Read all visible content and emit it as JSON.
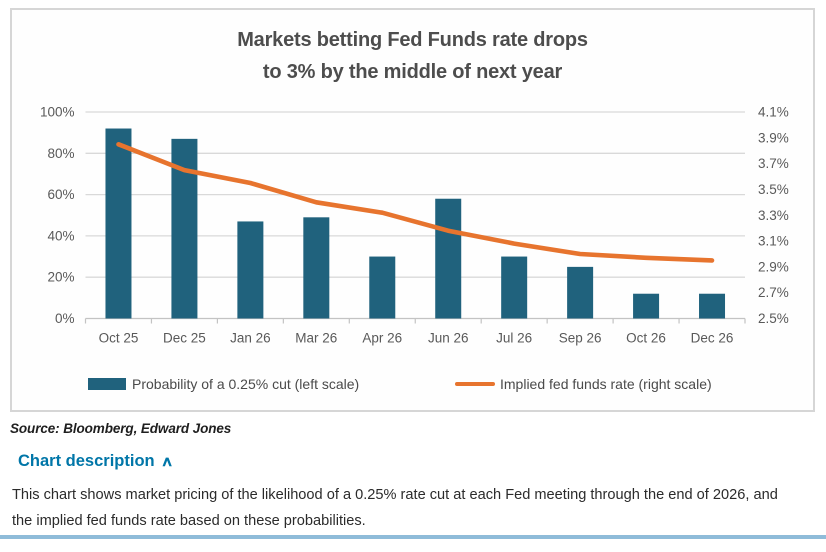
{
  "card": {
    "title_line1": "Markets betting Fed Funds rate drops",
    "title_line2": "to 3% by the middle of next year",
    "legend": [
      {
        "label": "Probability of a 0.25% cut (left scale)"
      },
      {
        "label": "Implied fed funds rate (right scale)"
      }
    ]
  },
  "chart_data": {
    "type": "bar+line",
    "title": "Markets betting Fed Funds rate drops to 3% by the middle of next year",
    "categories": [
      "Oct 25",
      "Dec 25",
      "Jan 26",
      "Mar 26",
      "Apr 26",
      "Jun 26",
      "Jul 26",
      "Sep 26",
      "Oct 26",
      "Dec 26"
    ],
    "series": [
      {
        "name": "Probability of a 0.25% cut (left scale)",
        "type": "bar",
        "axis": "left",
        "values": [
          92,
          87,
          47,
          49,
          30,
          58,
          30,
          25,
          12,
          12
        ]
      },
      {
        "name": "Implied fed funds rate (right scale)",
        "type": "line",
        "axis": "right",
        "values": [
          3.85,
          3.65,
          3.55,
          3.4,
          3.32,
          3.18,
          3.08,
          3.0,
          2.97,
          2.95
        ]
      }
    ],
    "left_axis": {
      "min": 0,
      "max": 100,
      "ticks": [
        "100%",
        "80%",
        "60%",
        "40%",
        "20%",
        "0%"
      ]
    },
    "right_axis": {
      "min": 2.5,
      "max": 4.1,
      "ticks": [
        "4.1%",
        "3.9%",
        "3.7%",
        "3.5%",
        "3.3%",
        "3.1%",
        "2.9%",
        "2.7%",
        "2.5%"
      ]
    },
    "grid": true,
    "legend_position": "bottom",
    "colors": {
      "bar": "#20627d",
      "line": "#e7742e",
      "grid": "#d9d9d9",
      "axis_line": "#c3c3c3",
      "axis_text": "#595959"
    }
  },
  "footer": {
    "source": "Source: Bloomberg, Edward Jones",
    "description_toggle": "Chart description",
    "chevron": "∧",
    "description_text": "This chart shows market pricing of the likelihood of a 0.25% rate cut at each Fed meeting through the end of 2026, and the implied fed funds rate based on these probabilities.",
    "accent_color": "#0076a8",
    "divider_color": "#8fbcd9"
  }
}
